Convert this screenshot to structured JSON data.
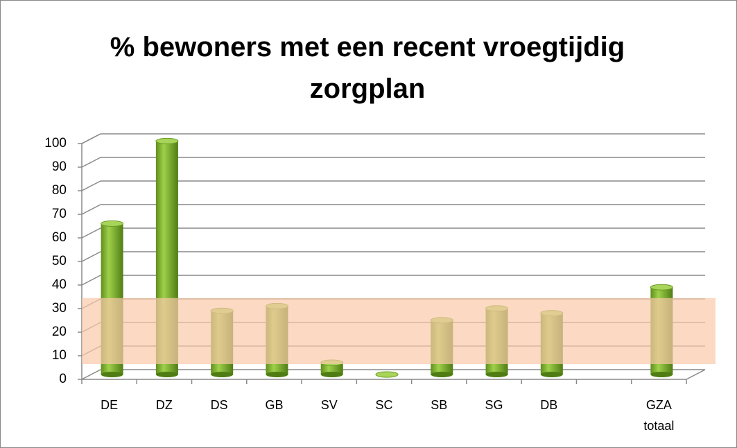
{
  "chart_data": {
    "type": "bar",
    "title": "% bewoners met een recent vroegtijdig zorgplan",
    "categories": [
      "DE",
      "DZ",
      "DS",
      "GB",
      "SV",
      "SC",
      "SB",
      "SG",
      "DB",
      null,
      "GZA totaal"
    ],
    "values": [
      64,
      99,
      27,
      29,
      5,
      0,
      23,
      28,
      26,
      null,
      37
    ],
    "color": "#7fb52e",
    "ylim": [
      0,
      100
    ],
    "yticks": [
      0,
      10,
      20,
      30,
      40,
      50,
      60,
      70,
      80,
      90,
      100
    ],
    "grid": true,
    "band": {
      "from": 5,
      "to": 33,
      "color": "#f9c9a8"
    }
  }
}
